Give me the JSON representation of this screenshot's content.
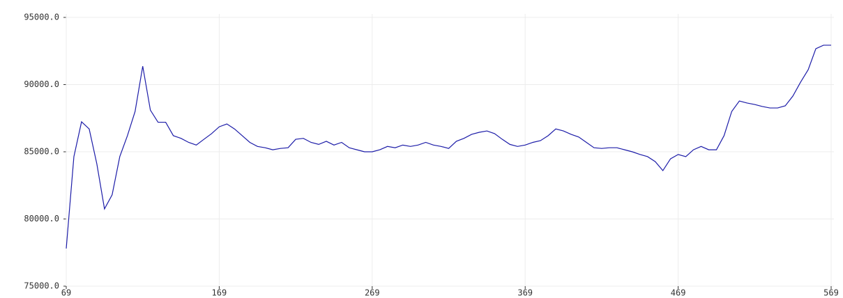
{
  "chart_data": {
    "type": "line",
    "x": [
      69,
      74,
      79,
      84,
      89,
      94,
      99,
      104,
      109,
      114,
      119,
      124,
      129,
      134,
      139,
      144,
      149,
      154,
      159,
      164,
      169,
      174,
      179,
      184,
      189,
      194,
      199,
      204,
      209,
      214,
      219,
      224,
      229,
      234,
      239,
      244,
      249,
      254,
      259,
      264,
      269,
      274,
      279,
      284,
      289,
      294,
      299,
      304,
      309,
      314,
      319,
      324,
      329,
      334,
      339,
      344,
      349,
      354,
      359,
      364,
      369,
      374,
      379,
      384,
      389,
      394,
      399,
      404,
      409,
      414,
      419,
      424,
      429,
      434,
      439,
      444,
      449,
      454,
      459,
      464,
      469,
      474,
      479,
      484,
      489,
      494,
      499,
      504,
      509,
      514,
      519,
      524,
      529,
      534,
      539,
      544,
      549,
      554,
      559,
      564,
      569
    ],
    "series": [
      {
        "color": "#1c1ca8",
        "values": [
          77800,
          84640,
          87230,
          86700,
          84100,
          80750,
          81800,
          84640,
          86200,
          88000,
          91370,
          88100,
          87200,
          87200,
          86200,
          86000,
          85700,
          85500,
          85930,
          86350,
          86860,
          87070,
          86700,
          86200,
          85700,
          85400,
          85300,
          85150,
          85250,
          85300,
          85930,
          86000,
          85700,
          85550,
          85780,
          85500,
          85700,
          85300,
          85150,
          85000,
          85000,
          85150,
          85400,
          85300,
          85500,
          85400,
          85500,
          85700,
          85500,
          85400,
          85250,
          85780,
          86000,
          86300,
          86450,
          86550,
          86350,
          85930,
          85550,
          85400,
          85500,
          85700,
          85830,
          86200,
          86700,
          86550,
          86300,
          86100,
          85700,
          85300,
          85250,
          85300,
          85300,
          85150,
          85000,
          84800,
          84640,
          84270,
          83600,
          84480,
          84800,
          84640,
          85150,
          85400,
          85150,
          85150,
          86200,
          88000,
          88780,
          88630,
          88520,
          88370,
          88260,
          88260,
          88420,
          89150,
          90180,
          91110,
          92670,
          92930,
          92930
        ]
      }
    ],
    "xlim": [
      69,
      569
    ],
    "xticks": [
      69,
      169,
      269,
      369,
      469,
      569
    ],
    "ylim": [
      75000,
      95000
    ],
    "yticks": [
      {
        "value": 75000,
        "label": "75000.0"
      },
      {
        "value": 80000,
        "label": "80000.0"
      },
      {
        "value": 85000,
        "label": "85000.0"
      },
      {
        "value": 90000,
        "label": "90000.0"
      },
      {
        "value": 95000,
        "label": "95000.0"
      }
    ],
    "grid": true
  }
}
